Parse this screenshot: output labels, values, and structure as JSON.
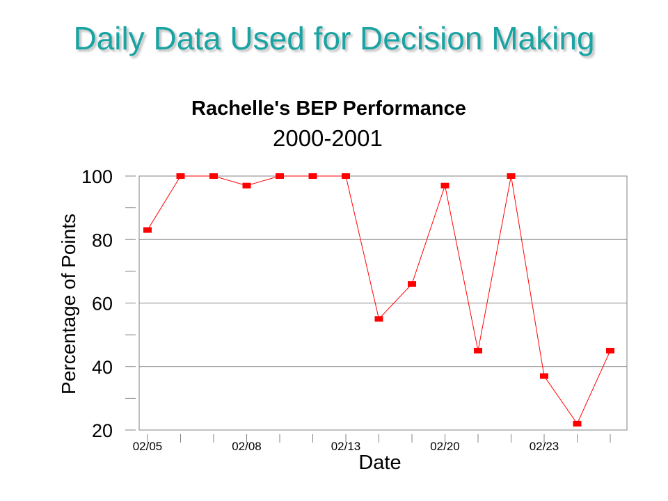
{
  "slide": {
    "title": "Daily Data Used for Decision Making"
  },
  "chart_data": {
    "type": "line",
    "title": "Rachelle's BEP Performance",
    "subtitle": "2000-2001",
    "xlabel": "Date",
    "ylabel": "Percentage of Points",
    "ylim": [
      20,
      100
    ],
    "yticks": [
      20,
      40,
      60,
      80,
      100
    ],
    "ygrid": [
      40,
      60,
      80,
      100
    ],
    "x_tick_labels": [
      "02/05",
      "02/08",
      "02/13",
      "02/20",
      "02/23"
    ],
    "x_tick_label_positions": [
      0,
      3,
      6,
      9,
      12
    ],
    "grid": true,
    "series": [
      {
        "values": [
          83,
          100,
          100,
          97,
          100,
          100,
          100,
          55,
          66,
          97,
          45,
          100,
          37,
          22,
          45
        ]
      }
    ],
    "colors": {
      "line": "#ff0000",
      "marker": "#ff0000",
      "grid": "#808080"
    }
  }
}
